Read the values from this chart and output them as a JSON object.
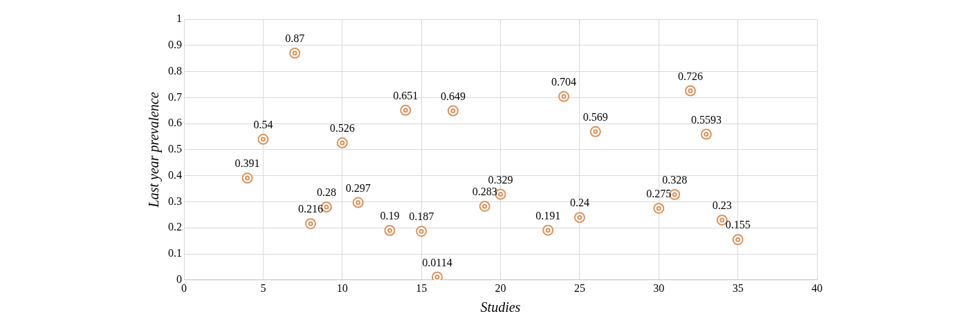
{
  "chart_data": {
    "type": "scatter",
    "xlabel": "Studies",
    "ylabel": "Last year prevalence",
    "x": [
      4,
      5,
      7,
      8,
      9,
      10,
      11,
      13,
      14,
      15,
      16,
      17,
      19,
      20,
      23,
      24,
      25,
      26,
      30,
      31,
      32,
      33,
      34,
      35
    ],
    "series": [
      {
        "color": "#e0915a",
        "values": [
          0.391,
          0.54,
          0.87,
          0.216,
          0.28,
          0.526,
          0.297,
          0.19,
          0.651,
          0.187,
          0.0114,
          0.649,
          0.283,
          0.329,
          0.191,
          0.704,
          0.24,
          0.569,
          0.275,
          0.328,
          0.726,
          0.5593,
          0.23,
          0.155
        ]
      }
    ],
    "xlim": [
      0,
      40
    ],
    "xticks": [
      0,
      5,
      10,
      15,
      20,
      25,
      30,
      35,
      40
    ],
    "ylim": [
      0,
      1
    ],
    "yticks": [
      0,
      0.1,
      0.2,
      0.3,
      0.4,
      0.5,
      0.6,
      0.7,
      0.8,
      0.9,
      1
    ],
    "grid": true,
    "legend": false,
    "marker": "circle",
    "data_labels": true
  }
}
